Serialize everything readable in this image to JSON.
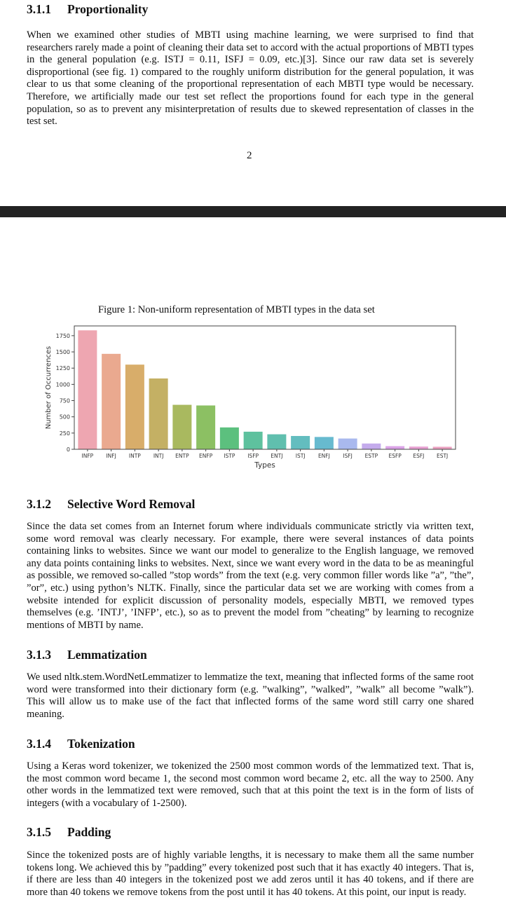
{
  "section_311": {
    "number": "3.1.1",
    "title": "Proportionality",
    "body": "When we examined other studies of MBTI using machine learning, we were surprised to find that researchers rarely made a point of cleaning their data set to accord with the actual proportions of MBTI types in the general population (e.g. ISTJ = 0.11, ISFJ = 0.09, etc.)[3]. Since our raw data set is severely disproportional (see fig. 1) compared to the roughly uniform distribution for the general population, it was clear to us that some cleaning of the proportional representation of each MBTI type would be necessary. Therefore, we artificially made our test set reflect the proportions found for each type in the general population, so as to prevent any misinterpretation of results due to skewed representation of classes in the test set."
  },
  "page_number": "2",
  "figure": {
    "caption": "Figure 1: Non-uniform representation of MBTI types in the data set"
  },
  "chart_data": {
    "type": "bar",
    "xlabel": "Types",
    "ylabel": "Number of Occurrences",
    "ylim": [
      0,
      1900
    ],
    "yticks": [
      0,
      250,
      500,
      750,
      1000,
      1250,
      1500,
      1750
    ],
    "grid": false,
    "categories": [
      "INFP",
      "INFJ",
      "INTP",
      "INTJ",
      "ENTP",
      "ENFP",
      "ISTP",
      "ISFP",
      "ENTJ",
      "ISTJ",
      "ENFJ",
      "ISFJ",
      "ESTP",
      "ESFP",
      "ESFJ",
      "ESTJ"
    ],
    "values": [
      1832,
      1470,
      1304,
      1091,
      685,
      675,
      337,
      271,
      231,
      205,
      190,
      166,
      89,
      48,
      42,
      39
    ],
    "colors": [
      "#eea6b1",
      "#eaa98f",
      "#d8ad6a",
      "#c4b064",
      "#a9b95f",
      "#8cc063",
      "#5cc07e",
      "#5ec19e",
      "#60bfae",
      "#63bdbf",
      "#67bacf",
      "#a9b9ee",
      "#c4abec",
      "#dba3e8",
      "#e8a2d3",
      "#eba1c1"
    ]
  },
  "section_312": {
    "number": "3.1.2",
    "title": "Selective Word Removal",
    "body": "Since the data set comes from an Internet forum where individuals communicate strictly via written text, some word removal was clearly necessary. For example, there were several instances of data points containing links to websites. Since we want our model to generalize to the English language, we removed any data points containing links to websites. Next, since we want every word in the data to be as meaningful as possible, we removed so-called ”stop words” from the text (e.g. very common filler words like ”a”, ”the”, ”or”, etc.) using python’s NLTK. Finally, since the particular data set we are working with comes from a website intended for explicit discussion of personality models, especially MBTI, we removed types themselves (e.g. ’INTJ’, ’INFP’, etc.), so as to prevent the model from ”cheating” by learning to recognize mentions of MBTI by name."
  },
  "section_313": {
    "number": "3.1.3",
    "title": "Lemmatization",
    "body": "We used nltk.stem.WordNetLemmatizer to lemmatize the text, meaning that inflected forms of the same root word were transformed into their dictionary form (e.g. ”walking”, ”walked”, ”walk” all become ”walk”). This will allow us to make use of the fact that inflected forms of the same word still carry one shared meaning."
  },
  "section_314": {
    "number": "3.1.4",
    "title": "Tokenization",
    "body": "Using a Keras word tokenizer, we tokenized the 2500 most common words of the lemmatized text. That is, the most common word became 1, the second most common word became 2, etc. all the way to 2500. Any other words in the lemmatized text were removed, such that at this point the text is in the form of lists of integers (with a vocabulary of 1-2500)."
  },
  "section_315": {
    "number": "3.1.5",
    "title": "Padding",
    "body": "Since the tokenized posts are of highly variable lengths, it is necessary to make them all the same number tokens long. We achieved this by ”padding” every tokenized post such that it has exactly 40 integers. That is, if there are less than 40 integers in the tokenized post we add zeros until it has 40 tokens, and if there are more than 40 tokens we remove tokens from the post until it has 40 tokens. At this point, our input is ready."
  }
}
